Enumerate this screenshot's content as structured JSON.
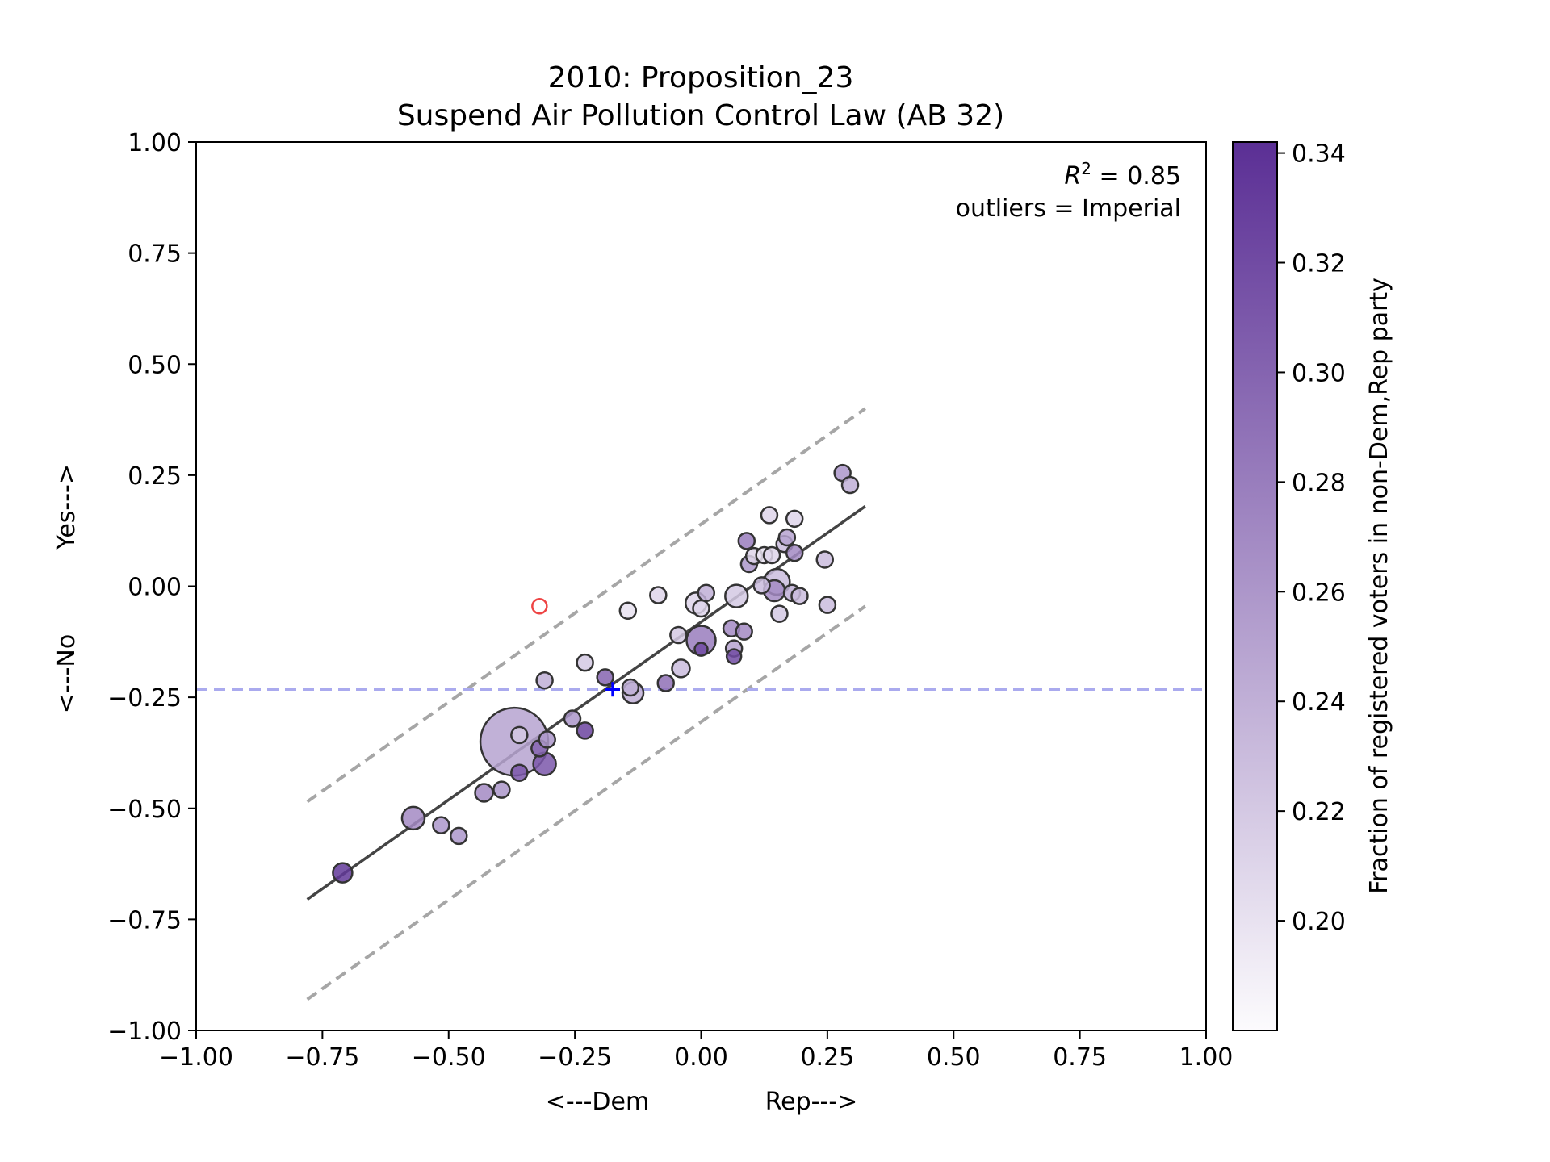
{
  "chart_data": {
    "type": "scatter",
    "title": [
      "2010: Proposition_23",
      "Suspend Air Pollution Control Law (AB 32)"
    ],
    "xlabel": {
      "left": "<---Dem",
      "right": "Rep--->"
    },
    "ylabel": {
      "bottom": "<---No",
      "top": "Yes--->"
    },
    "xlim": [
      -1.0,
      1.0
    ],
    "ylim": [
      -1.0,
      1.0
    ],
    "xticks": [
      -1.0,
      -0.75,
      -0.5,
      -0.25,
      0.0,
      0.25,
      0.5,
      0.75,
      1.0
    ],
    "xtick_labels": [
      "−1.00",
      "−0.75",
      "−0.50",
      "−0.25",
      "0.00",
      "0.25",
      "0.50",
      "0.75",
      "1.00"
    ],
    "yticks": [
      1.0,
      0.75,
      0.5,
      0.25,
      0.0,
      -0.25,
      -0.5,
      -0.75,
      -1.0
    ],
    "ytick_labels": [
      "1.00",
      "0.75",
      "0.50",
      "0.25",
      "0.00",
      "−0.25",
      "−0.50",
      "−0.75",
      "−1.00"
    ],
    "grid": false,
    "annotation": {
      "r2_prefix": "R",
      "r2_sup": "2",
      "r2_value": " = 0.85",
      "outliers": "outliers = Imperial"
    },
    "colorbar": {
      "label": "Fraction of registered voters in non-Dem,Rep party",
      "range": [
        0.18,
        0.342
      ],
      "ticks": [
        0.34,
        0.32,
        0.3,
        0.28,
        0.26,
        0.24,
        0.22,
        0.2
      ],
      "tick_labels": [
        "0.34",
        "0.32",
        "0.30",
        "0.28",
        "0.26",
        "0.24",
        "0.22",
        "0.20"
      ],
      "color_low": "#fcfbfd",
      "color_high": "#5b2f95"
    },
    "fit_line": {
      "x": [
        -0.78,
        0.325
      ],
      "y": [
        -0.705,
        0.18
      ],
      "color": "#444444"
    },
    "bands": [
      {
        "x": [
          -0.78,
          0.325
        ],
        "y": [
          -0.485,
          0.4
        ]
      },
      {
        "x": [
          -0.78,
          0.325
        ],
        "y": [
          -0.93,
          -0.045
        ]
      }
    ],
    "reference_line": {
      "y": -0.232,
      "color": "#aaaaee"
    },
    "statewide_marker": {
      "x": -0.175,
      "y": -0.232,
      "color": "#0000ff"
    },
    "outlier_points": [
      {
        "x": -0.32,
        "y": -0.045,
        "r": 9,
        "color": "#ee4444"
      }
    ],
    "points": [
      {
        "x": -0.37,
        "y": -0.35,
        "r": 42,
        "c": 0.25
      },
      {
        "x": -0.71,
        "y": -0.645,
        "r": 12,
        "c": 0.335
      },
      {
        "x": -0.57,
        "y": -0.522,
        "r": 14,
        "c": 0.27
      },
      {
        "x": -0.515,
        "y": -0.538,
        "r": 10,
        "c": 0.26
      },
      {
        "x": -0.48,
        "y": -0.562,
        "r": 10,
        "c": 0.26
      },
      {
        "x": -0.43,
        "y": -0.465,
        "r": 11,
        "c": 0.27
      },
      {
        "x": -0.395,
        "y": -0.458,
        "r": 10,
        "c": 0.26
      },
      {
        "x": -0.36,
        "y": -0.335,
        "r": 10,
        "c": 0.22
      },
      {
        "x": -0.36,
        "y": -0.42,
        "r": 10,
        "c": 0.31
      },
      {
        "x": -0.32,
        "y": -0.365,
        "r": 10,
        "c": 0.3
      },
      {
        "x": -0.31,
        "y": -0.4,
        "r": 14,
        "c": 0.31
      },
      {
        "x": -0.305,
        "y": -0.345,
        "r": 10,
        "c": 0.26
      },
      {
        "x": -0.31,
        "y": -0.212,
        "r": 10,
        "c": 0.24
      },
      {
        "x": -0.255,
        "y": -0.298,
        "r": 10,
        "c": 0.26
      },
      {
        "x": -0.23,
        "y": -0.325,
        "r": 10,
        "c": 0.325
      },
      {
        "x": -0.23,
        "y": -0.172,
        "r": 10,
        "c": 0.22
      },
      {
        "x": -0.19,
        "y": -0.205,
        "r": 10,
        "c": 0.3
      },
      {
        "x": -0.145,
        "y": -0.055,
        "r": 10,
        "c": 0.2
      },
      {
        "x": -0.135,
        "y": -0.24,
        "r": 13,
        "c": 0.24
      },
      {
        "x": -0.14,
        "y": -0.228,
        "r": 10,
        "c": 0.24
      },
      {
        "x": -0.085,
        "y": -0.02,
        "r": 10,
        "c": 0.21
      },
      {
        "x": -0.07,
        "y": -0.218,
        "r": 10,
        "c": 0.29
      },
      {
        "x": -0.045,
        "y": -0.11,
        "r": 10,
        "c": 0.22
      },
      {
        "x": -0.04,
        "y": -0.185,
        "r": 11,
        "c": 0.23
      },
      {
        "x": -0.01,
        "y": -0.038,
        "r": 13,
        "c": 0.21
      },
      {
        "x": 0.0,
        "y": -0.05,
        "r": 10,
        "c": 0.21
      },
      {
        "x": 0.0,
        "y": -0.122,
        "r": 18,
        "c": 0.28
      },
      {
        "x": 0.0,
        "y": -0.142,
        "r": 8,
        "c": 0.32
      },
      {
        "x": 0.01,
        "y": -0.015,
        "r": 10,
        "c": 0.24
      },
      {
        "x": 0.06,
        "y": -0.095,
        "r": 10,
        "c": 0.27
      },
      {
        "x": 0.065,
        "y": -0.14,
        "r": 10,
        "c": 0.25
      },
      {
        "x": 0.065,
        "y": -0.158,
        "r": 9,
        "c": 0.32
      },
      {
        "x": 0.07,
        "y": -0.022,
        "r": 14,
        "c": 0.22
      },
      {
        "x": 0.085,
        "y": -0.102,
        "r": 10,
        "c": 0.27
      },
      {
        "x": 0.09,
        "y": 0.102,
        "r": 10,
        "c": 0.28
      },
      {
        "x": 0.095,
        "y": 0.05,
        "r": 10,
        "c": 0.26
      },
      {
        "x": 0.105,
        "y": 0.068,
        "r": 10,
        "c": 0.21
      },
      {
        "x": 0.12,
        "y": 0.002,
        "r": 10,
        "c": 0.23
      },
      {
        "x": 0.125,
        "y": 0.07,
        "r": 10,
        "c": 0.2
      },
      {
        "x": 0.135,
        "y": 0.16,
        "r": 10,
        "c": 0.21
      },
      {
        "x": 0.14,
        "y": 0.07,
        "r": 10,
        "c": 0.21
      },
      {
        "x": 0.145,
        "y": -0.01,
        "r": 13,
        "c": 0.27
      },
      {
        "x": 0.15,
        "y": 0.01,
        "r": 16,
        "c": 0.23
      },
      {
        "x": 0.155,
        "y": -0.062,
        "r": 10,
        "c": 0.22
      },
      {
        "x": 0.165,
        "y": 0.095,
        "r": 10,
        "c": 0.23
      },
      {
        "x": 0.17,
        "y": 0.11,
        "r": 10,
        "c": 0.25
      },
      {
        "x": 0.18,
        "y": -0.015,
        "r": 10,
        "c": 0.24
      },
      {
        "x": 0.185,
        "y": 0.075,
        "r": 10,
        "c": 0.27
      },
      {
        "x": 0.185,
        "y": 0.152,
        "r": 10,
        "c": 0.21
      },
      {
        "x": 0.195,
        "y": -0.022,
        "r": 10,
        "c": 0.23
      },
      {
        "x": 0.245,
        "y": 0.06,
        "r": 10,
        "c": 0.23
      },
      {
        "x": 0.25,
        "y": -0.042,
        "r": 10,
        "c": 0.23
      },
      {
        "x": 0.28,
        "y": 0.255,
        "r": 10,
        "c": 0.26
      },
      {
        "x": 0.295,
        "y": 0.228,
        "r": 10,
        "c": 0.24
      }
    ]
  }
}
